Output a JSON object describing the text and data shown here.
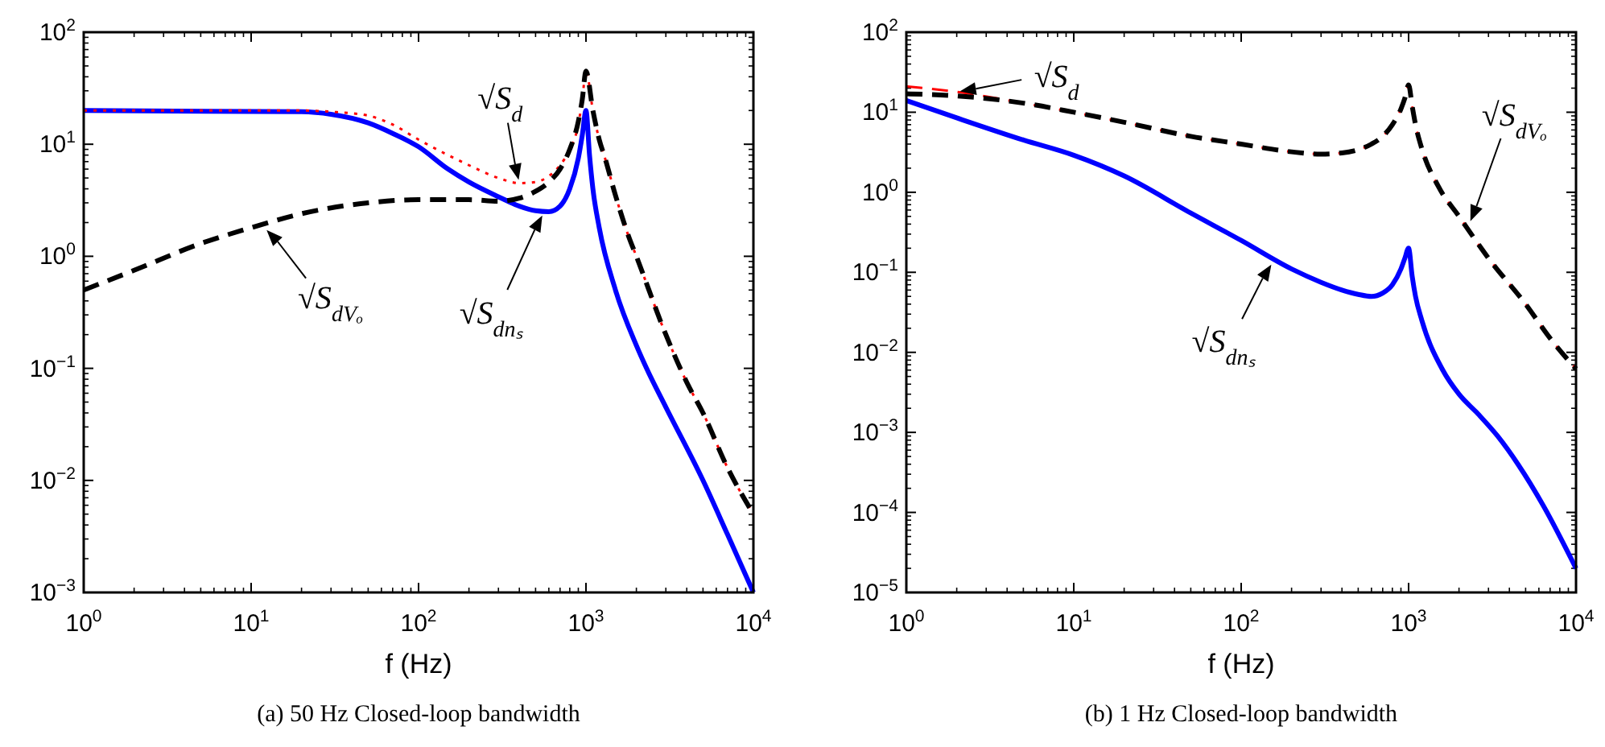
{
  "chart_data": [
    {
      "type": "line",
      "title": "(a) 50 Hz Closed-loop bandwidth",
      "xlabel": "f (Hz)",
      "log": "xy",
      "xlim": [
        1,
        10000
      ],
      "ylim": [
        0.001,
        100
      ],
      "xticks": [
        {
          "value": 1,
          "label": "10$^{0}$"
        },
        {
          "value": 10,
          "label": "10$^{1}$"
        },
        {
          "value": 100,
          "label": "10$^{2}$"
        },
        {
          "value": 1000,
          "label": "10$^{3}$"
        },
        {
          "value": 10000,
          "label": "10$^{4}$"
        }
      ],
      "yticks": [
        {
          "value": 0.001,
          "label": "10$^{−3}$"
        },
        {
          "value": 0.01,
          "label": "10$^{−2}$"
        },
        {
          "value": 0.1,
          "label": "10$^{−1}$"
        },
        {
          "value": 1,
          "label": "10$^{0}$"
        },
        {
          "value": 10,
          "label": "10$^{1}$"
        },
        {
          "value": 100,
          "label": "10$^{2}$"
        }
      ],
      "series": [
        {
          "color": "#0000ff",
          "line_style": "solid",
          "x": [
            1,
            20,
            30,
            50,
            70,
            100,
            150,
            200,
            300,
            400,
            500,
            600,
            700,
            800,
            900,
            950,
            1000,
            1050,
            1100,
            1200,
            1500,
            2000,
            2300,
            3000,
            5000,
            7000,
            10000
          ],
          "values": [
            20,
            19.5,
            18.5,
            15.5,
            12.5,
            9.5,
            6,
            4.6,
            3.4,
            2.8,
            2.55,
            2.5,
            2.8,
            4,
            7.5,
            12,
            20,
            8,
            4,
            1.8,
            0.5,
            0.16,
            0.1,
            0.045,
            0.01,
            0.0033,
            0.001
          ]
        },
        {
          "color": "#ff0000",
          "line_style": "dotted",
          "x": [
            1,
            5,
            10,
            20,
            30,
            50,
            70,
            100,
            150,
            200,
            300,
            400,
            500,
            600,
            700,
            800,
            900,
            950,
            1000,
            1100,
            1200,
            1300,
            1500,
            1800,
            2000,
            3000,
            4000,
            5000,
            7000,
            10000
          ],
          "values": [
            20,
            20,
            20,
            20,
            19.5,
            18,
            15,
            11,
            8,
            6.5,
            5,
            4.5,
            4.6,
            5.2,
            6.5,
            9,
            15,
            25,
            45,
            20,
            11,
            7.5,
            3.5,
            1.5,
            1,
            0.2,
            0.075,
            0.04,
            0.013,
            0.005
          ]
        },
        {
          "color": "#000000",
          "line_style": "dashed",
          "x": [
            1,
            2,
            5,
            10,
            20,
            50,
            100,
            200,
            300,
            400,
            500,
            600,
            700,
            800,
            900,
            950,
            1000,
            1100,
            1200,
            1300,
            1500,
            1800,
            2000,
            3000,
            4000,
            5000,
            7000,
            10000
          ],
          "values": [
            0.5,
            0.75,
            1.3,
            1.8,
            2.4,
            3,
            3.2,
            3.2,
            3.1,
            3.3,
            3.8,
            4.6,
            6,
            9,
            16,
            25,
            45,
            20,
            11,
            7.5,
            3.5,
            1.5,
            1,
            0.2,
            0.075,
            0.04,
            0.013,
            0.005
          ]
        }
      ],
      "annotations": [
        {
          "text": "√S$_{d}$",
          "x": 400,
          "y": 4.5
        },
        {
          "text": "√S$_{dVₒ}$",
          "x": 12,
          "y": 1.8
        },
        {
          "text": "√S$_{dnₛ}$",
          "x": 560,
          "y": 2.45
        }
      ]
    },
    {
      "type": "line",
      "title": "(b) 1 Hz Closed-loop bandwidth",
      "xlabel": "f (Hz)",
      "log": "xy",
      "xlim": [
        1,
        10000
      ],
      "ylim": [
        1e-05,
        100
      ],
      "xticks": [
        {
          "value": 1,
          "label": "10$^{0}$"
        },
        {
          "value": 10,
          "label": "10$^{1}$"
        },
        {
          "value": 100,
          "label": "10$^{2}$"
        },
        {
          "value": 1000,
          "label": "10$^{3}$"
        },
        {
          "value": 10000,
          "label": "10$^{4}$"
        }
      ],
      "yticks": [
        {
          "value": 1e-05,
          "label": "10$^{−5}$"
        },
        {
          "value": 0.0001,
          "label": "10$^{−4}$"
        },
        {
          "value": 0.001,
          "label": "10$^{−3}$"
        },
        {
          "value": 0.01,
          "label": "10$^{−2}$"
        },
        {
          "value": 0.1,
          "label": "10$^{−1}$"
        },
        {
          "value": 1,
          "label": "10$^{0}$"
        },
        {
          "value": 10,
          "label": "10$^{1}$"
        },
        {
          "value": 100,
          "label": "10$^{2}$"
        }
      ],
      "series": [
        {
          "color": "#0000ff",
          "line_style": "solid",
          "x": [
            1,
            2,
            5,
            10,
            20,
            50,
            100,
            200,
            300,
            400,
            500,
            600,
            700,
            800,
            900,
            950,
            1000,
            1050,
            1100,
            1200,
            1600,
            2000,
            2600,
            3400,
            4500,
            6400,
            10000
          ],
          "values": [
            14,
            8.5,
            4.5,
            2.9,
            1.6,
            0.55,
            0.25,
            0.11,
            0.075,
            0.06,
            0.053,
            0.05,
            0.055,
            0.07,
            0.11,
            0.15,
            0.2,
            0.09,
            0.05,
            0.025,
            0.006,
            0.003,
            0.0017,
            0.0009,
            0.0004,
            0.00012,
            2e-05
          ]
        },
        {
          "color": "#ff0000",
          "line_style": "dashed",
          "x": [
            1,
            2,
            5,
            10,
            20,
            50,
            100,
            200,
            300,
            400,
            500,
            600,
            700,
            800,
            900,
            950,
            1000,
            1050,
            1100,
            1200,
            1500,
            2000,
            3000,
            5000,
            7000,
            10000
          ],
          "values": [
            21,
            18,
            13,
            10,
            7.5,
            5,
            4,
            3.2,
            3,
            3.1,
            3.4,
            4,
            5,
            7,
            11,
            15,
            22,
            12,
            7,
            3.5,
            1.2,
            0.5,
            0.15,
            0.04,
            0.015,
            0.0062
          ]
        },
        {
          "color": "#000000",
          "line_style": "dashed",
          "x": [
            1,
            2,
            5,
            10,
            20,
            50,
            100,
            200,
            300,
            400,
            500,
            600,
            700,
            800,
            900,
            950,
            1000,
            1050,
            1100,
            1200,
            1500,
            2000,
            3000,
            5000,
            7000,
            10000
          ],
          "values": [
            17,
            16,
            13,
            10,
            7.5,
            5,
            4,
            3.2,
            3,
            3.1,
            3.4,
            4,
            5,
            7,
            11,
            15,
            22,
            12,
            7,
            3.5,
            1.2,
            0.5,
            0.15,
            0.04,
            0.015,
            0.0062
          ]
        }
      ],
      "annotations": [
        {
          "text": "√S$_{d}$",
          "x": 2,
          "y": 18
        },
        {
          "text": "√S$_{dVₒ}$",
          "x": 2300,
          "y": 0.4
        },
        {
          "text": "√S$_{dnₛ}$",
          "x": 155,
          "y": 0.135
        }
      ]
    }
  ]
}
